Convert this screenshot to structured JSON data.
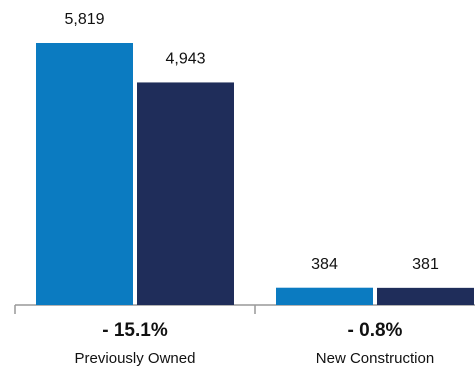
{
  "chart_data": {
    "type": "bar",
    "categories": [
      "Previously Owned",
      "New Construction"
    ],
    "annotations": [
      "- 15.1%",
      "- 0.8%"
    ],
    "series": [
      {
        "color": "#0b7bc1",
        "values": [
          5819,
          384
        ],
        "value_labels": [
          "5,819",
          "384"
        ]
      },
      {
        "color": "#1f2d5a",
        "values": [
          4943,
          381
        ],
        "value_labels": [
          "4,943",
          "381"
        ]
      }
    ]
  }
}
